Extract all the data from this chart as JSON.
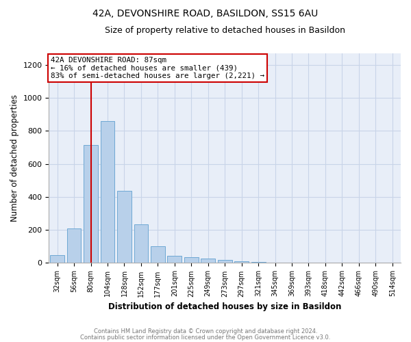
{
  "title1": "42A, DEVONSHIRE ROAD, BASILDON, SS15 6AU",
  "title2": "Size of property relative to detached houses in Basildon",
  "xlabel": "Distribution of detached houses by size in Basildon",
  "ylabel": "Number of detached properties",
  "bar_labels": [
    "32sqm",
    "56sqm",
    "80sqm",
    "104sqm",
    "128sqm",
    "152sqm",
    "177sqm",
    "201sqm",
    "225sqm",
    "249sqm",
    "273sqm",
    "297sqm",
    "321sqm",
    "345sqm",
    "369sqm",
    "393sqm",
    "418sqm",
    "442sqm",
    "466sqm",
    "490sqm",
    "514sqm"
  ],
  "bar_heights": [
    47,
    210,
    715,
    860,
    437,
    233,
    100,
    42,
    37,
    25,
    18,
    10,
    8,
    0,
    0,
    0,
    0,
    0,
    0,
    0,
    0
  ],
  "bar_color": "#b8d0ea",
  "bar_edge_color": "#6fa8d4",
  "annotation_label": "42A DEVONSHIRE ROAD: 87sqm",
  "annotation_line1": "← 16% of detached houses are smaller (439)",
  "annotation_line2": "83% of semi-detached houses are larger (2,221) →",
  "vline_color": "#cc0000",
  "vline_x": 2.0,
  "ylim": [
    0,
    1270
  ],
  "yticks": [
    0,
    200,
    400,
    600,
    800,
    1000,
    1200
  ],
  "footnote1": "Contains HM Land Registry data © Crown copyright and database right 2024.",
  "footnote2": "Contains public sector information licensed under the Open Government Licence v3.0.",
  "bg_color": "#ffffff",
  "plot_bg_color": "#e8eef8",
  "grid_color": "#c8d4e8",
  "annotation_border_color": "#cc0000",
  "title1_fontsize": 10,
  "title2_fontsize": 9
}
